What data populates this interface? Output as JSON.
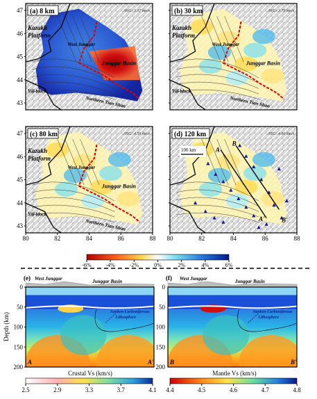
{
  "maps": [
    {
      "id": "a",
      "label": "(a) 8 km",
      "avg": "AVG: 3.17 km/s",
      "places": {
        "platform": [
          "Kazakh",
          "Platform"
        ],
        "junggar": "West Junggar",
        "basin": "Junggar Basin",
        "tien": "Northern Tian Shan",
        "yili": "Yili block"
      }
    },
    {
      "id": "b",
      "label": "(b) 30 km",
      "avg": "AVG: 3.79 km/s",
      "places": {
        "platform": [
          "Kazakh",
          "Platform"
        ],
        "junggar": "West Junggar",
        "basin": "Junggar Basin",
        "tien": "Northern Tian Shan",
        "yili": "Yili block"
      }
    },
    {
      "id": "c",
      "label": "(c) 80 km",
      "avg": "AVG: 4.55 km/s",
      "places": {
        "platform": [
          "Kazakh",
          "Platform"
        ],
        "junggar": "West Junggar",
        "basin": "Junggar Basin",
        "tien": "Northern Tian Shan",
        "yili": "Yili block"
      }
    },
    {
      "id": "d",
      "label": "(d) 120 km",
      "avg": "AVG: 4.60 km/s",
      "scalebar": "100 km",
      "profile_labels": {
        "A": "A",
        "B": "B",
        "A2": "A'",
        "B2": "B'"
      }
    }
  ],
  "map_axes": {
    "lat_ticks": [
      "47",
      "46",
      "45",
      "44",
      "43"
    ],
    "lon_ticks": [
      "80",
      "82",
      "84",
      "86",
      "88"
    ],
    "lat_top": [
      "47",
      "46",
      "45",
      "44",
      "43"
    ]
  },
  "perturb_colorbar": {
    "ticks": [
      "-6%",
      "-4%",
      "-2%",
      "0%",
      "2%",
      "4%",
      "6%"
    ]
  },
  "sections": [
    {
      "id": "e",
      "label": "(e)",
      "left_place": "West Junggar",
      "right_place": "Junggar Basin",
      "annotation": [
        "Sunken Carboniferous",
        "Lithosphere"
      ],
      "start": "A",
      "end": "A'"
    },
    {
      "id": "f",
      "label": "(f)",
      "left_place": "West Junggar",
      "right_place": "Junggar Basin",
      "annotation": [
        "Sunken Carboniferous",
        "Lithosphere"
      ],
      "start": "B",
      "end": "B'"
    }
  ],
  "depth_axis": {
    "label": "Depth (km)",
    "ticks": [
      "0",
      "50",
      "100",
      "150",
      "200"
    ]
  },
  "crust_colorbar": {
    "title": "Crustal Vs (km/s)",
    "ticks": [
      "2.5",
      "2.9",
      "3.3",
      "3.7",
      "4.1"
    ]
  },
  "mantle_colorbar": {
    "title": "Mantle Vs (km/s)",
    "ticks": [
      "4.4",
      "4.5",
      "4.6",
      "4.7",
      "4.8"
    ]
  }
}
